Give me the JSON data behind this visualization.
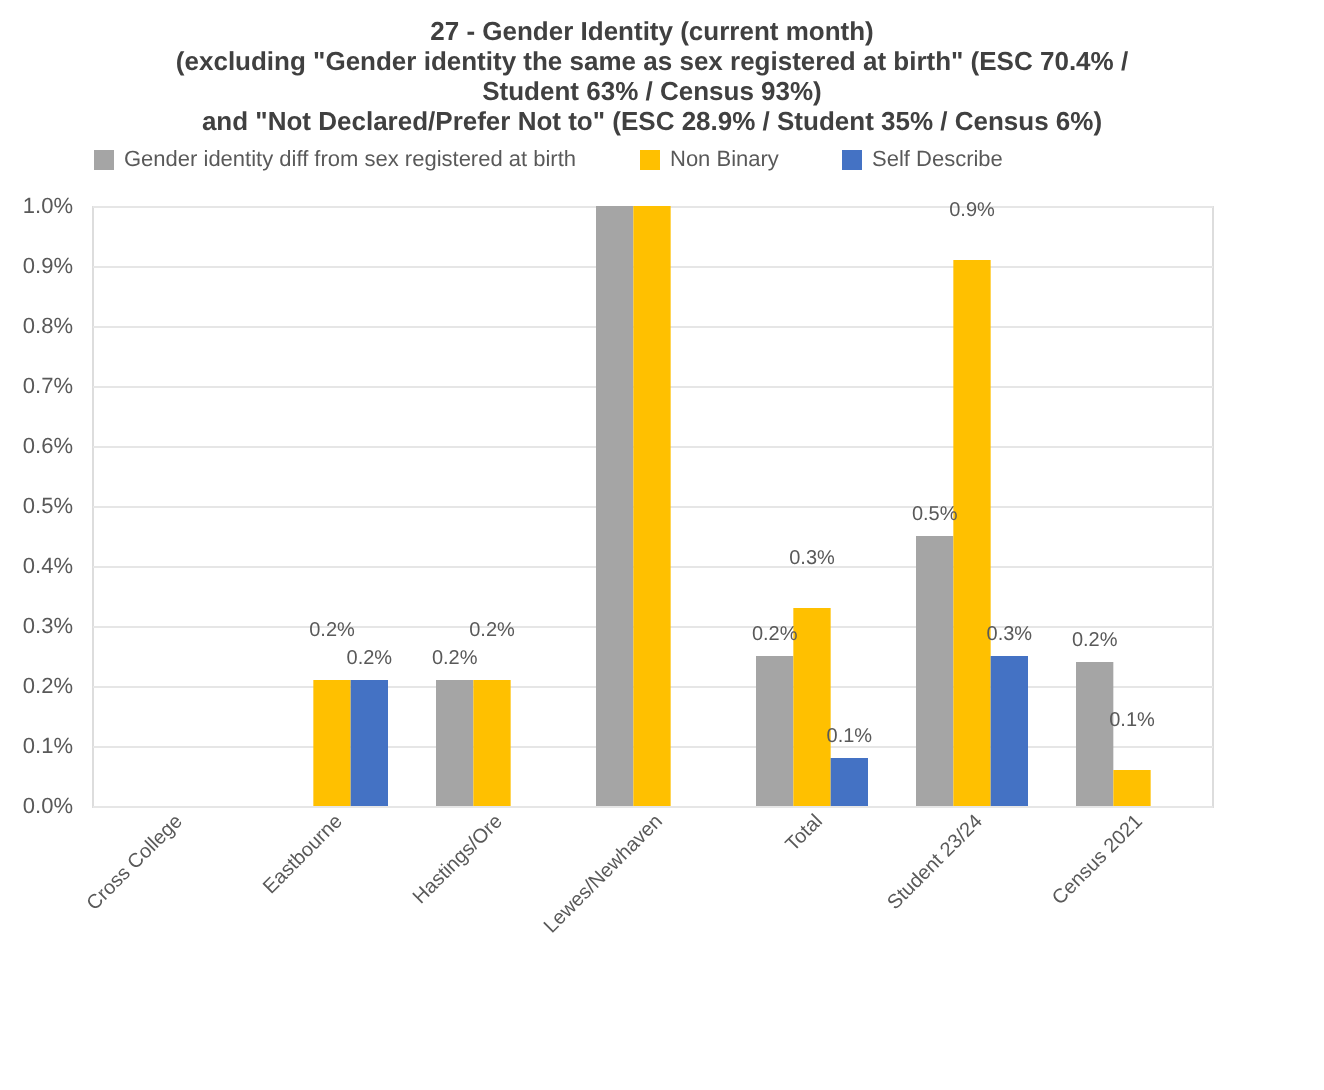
{
  "chart_data": {
    "type": "bar",
    "title": [
      "27 - Gender Identity (current month)",
      "(excluding \"Gender identity the same as sex registered at birth\" (ESC 70.4% /",
      "Student 63% / Census 93%)",
      "and \"Not Declared/Prefer Not to\" (ESC 28.9% / Student 35% / Census 6%)"
    ],
    "categories": [
      "Cross College",
      "Eastbourne",
      "Hastings/Ore",
      "Lewes/Newhaven",
      "Total",
      "Student 23/24",
      "Census 2021"
    ],
    "series": [
      {
        "name": "Gender identity diff from sex registered at birth",
        "color": "#a5a5a5",
        "values": [
          null,
          null,
          0.21,
          1.0,
          0.25,
          0.45,
          0.24
        ],
        "value_labels": [
          null,
          null,
          "0.2%",
          null,
          "0.2%",
          "0.5%",
          "0.2%"
        ]
      },
      {
        "name": "Non Binary",
        "color": "#ffc000",
        "values": [
          null,
          0.21,
          0.21,
          1.0,
          0.33,
          0.91,
          0.06
        ],
        "value_labels": [
          null,
          "0.2%",
          "0.2%",
          null,
          "0.3%",
          "0.9%",
          "0.1%"
        ]
      },
      {
        "name": "Self Describe",
        "color": "#4472c4",
        "values": [
          null,
          0.21,
          null,
          null,
          0.08,
          0.25,
          null
        ],
        "value_labels": [
          null,
          "0.2%",
          null,
          null,
          "0.1%",
          "0.3%",
          null
        ]
      }
    ],
    "ylim": [
      0,
      1.0
    ],
    "yticks": [
      {
        "value": 0,
        "label": "0.0%"
      },
      {
        "value": 0.1,
        "label": "0.1%"
      },
      {
        "value": 0.2,
        "label": "0.2%"
      },
      {
        "value": 0.3,
        "label": "0.3%"
      },
      {
        "value": 0.4,
        "label": "0.4%"
      },
      {
        "value": 0.5,
        "label": "0.5%"
      },
      {
        "value": 0.6,
        "label": "0.6%"
      },
      {
        "value": 0.7,
        "label": "0.7%"
      },
      {
        "value": 0.8,
        "label": "0.8%"
      },
      {
        "value": 0.9,
        "label": "0.9%"
      },
      {
        "value": 1.0,
        "label": "1.0%"
      }
    ],
    "grid": "y",
    "legend": "top"
  }
}
